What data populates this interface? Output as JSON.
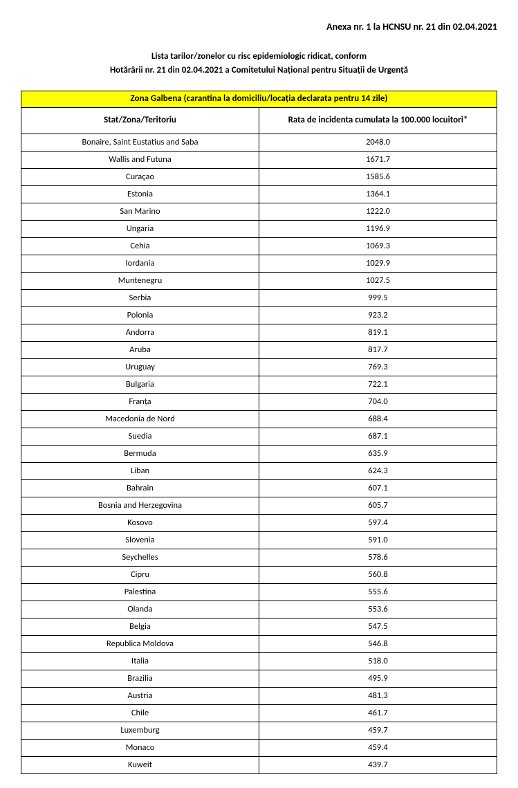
{
  "annex_header": "Anexa nr. 1 la HCNSU nr. 21 din 02.04.2021",
  "title_line1": "Lista tarilor/zonelor cu risc epidemiologic ridicat, conform",
  "title_line2": "Hotărârii nr. 21 din 02.04.2021 a Comitetului Național pentru Situații de Urgență",
  "zone_header": "Zona Galbena (carantina la domiciliu/locația declarata pentru 14 zile)",
  "col_country": "Stat/Zona/Teritoriu",
  "col_rate": "Rata de incidenta cumulata la 100.000 locuitori*",
  "zone_header_bg": "#ffff00",
  "border_color": "#000000",
  "rows": [
    {
      "country": "Bonaire, Saint Eustatius and Saba",
      "rate": "2048.0"
    },
    {
      "country": "Wallis and Futuna",
      "rate": "1671.7"
    },
    {
      "country": "Curaçao",
      "rate": "1585.6"
    },
    {
      "country": "Estonia",
      "rate": "1364.1"
    },
    {
      "country": "San Marino",
      "rate": "1222.0"
    },
    {
      "country": "Ungaria",
      "rate": "1196.9"
    },
    {
      "country": "Cehia",
      "rate": "1069.3"
    },
    {
      "country": "Iordania",
      "rate": "1029.9"
    },
    {
      "country": "Muntenegru",
      "rate": "1027.5"
    },
    {
      "country": "Serbia",
      "rate": "999.5"
    },
    {
      "country": "Polonia",
      "rate": "923.2"
    },
    {
      "country": "Andorra",
      "rate": "819.1"
    },
    {
      "country": "Aruba",
      "rate": "817.7"
    },
    {
      "country": "Uruguay",
      "rate": "769.3"
    },
    {
      "country": "Bulgaria",
      "rate": "722.1"
    },
    {
      "country": "Franța",
      "rate": "704.0"
    },
    {
      "country": "Macedonia de Nord",
      "rate": "688.4"
    },
    {
      "country": "Suedia",
      "rate": "687.1"
    },
    {
      "country": "Bermuda",
      "rate": "635.9"
    },
    {
      "country": "Liban",
      "rate": "624.3"
    },
    {
      "country": "Bahrain",
      "rate": "607.1"
    },
    {
      "country": "Bosnia and Herzegovina",
      "rate": "605.7"
    },
    {
      "country": "Kosovo",
      "rate": "597.4"
    },
    {
      "country": "Slovenia",
      "rate": "591.0"
    },
    {
      "country": "Seychelles",
      "rate": "578.6"
    },
    {
      "country": "Cipru",
      "rate": "560.8"
    },
    {
      "country": "Palestina",
      "rate": "555.6"
    },
    {
      "country": "Olanda",
      "rate": "553.6"
    },
    {
      "country": "Belgia",
      "rate": "547.5"
    },
    {
      "country": "Republica Moldova",
      "rate": "546.8"
    },
    {
      "country": "Italia",
      "rate": "518.0"
    },
    {
      "country": "Brazilia",
      "rate": "495.9"
    },
    {
      "country": "Austria",
      "rate": "481.3"
    },
    {
      "country": "Chile",
      "rate": "461.7"
    },
    {
      "country": "Luxemburg",
      "rate": "459.7"
    },
    {
      "country": "Monaco",
      "rate": "459.4"
    },
    {
      "country": "Kuweit",
      "rate": "439.7"
    }
  ]
}
